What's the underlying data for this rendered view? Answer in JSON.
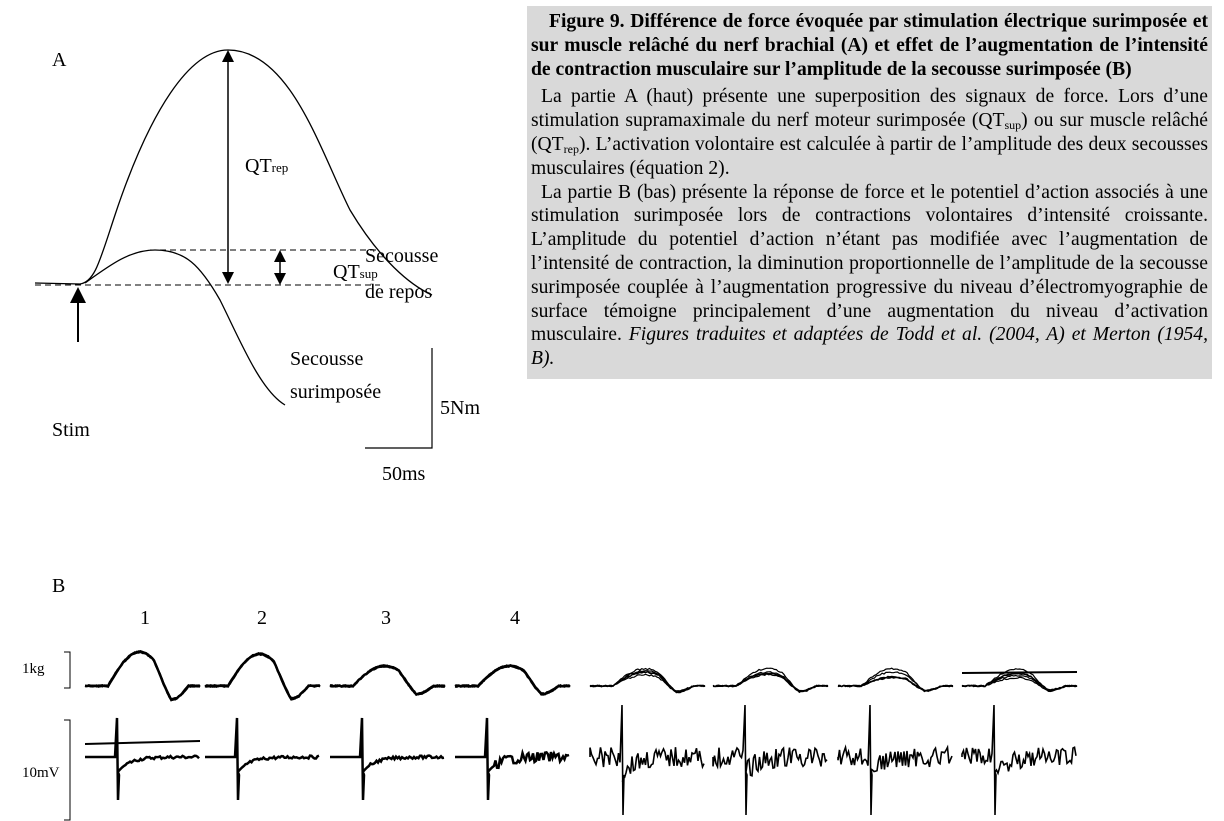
{
  "panel_a": {
    "label": "A",
    "qt_rep": {
      "main": "QT",
      "sub": "rep"
    },
    "qt_sup": {
      "main": "QT",
      "sub": "sup"
    },
    "rest_twitch": [
      "Secousse",
      "de repos"
    ],
    "superimposed_twitch": [
      "Secousse",
      "surimposée"
    ],
    "stim": "Stim",
    "scale_force": "5Nm",
    "scale_time": "50ms"
  },
  "panel_b": {
    "label": "B",
    "columns": [
      "1",
      "2",
      "3",
      "4"
    ],
    "scale_force": "1kg",
    "scale_emg": "10mV"
  },
  "caption": {
    "title": "Figure 9. Différence de force évoquée par stimulation électrique surimposée et sur muscle relâché du nerf brachial (A) et effet de l’augmentation de l’intensité de contraction musculaire sur l’amplitude de la secousse surimposée (B)",
    "paragraphs": [
      [
        "La partie A (haut) présente une superposition des signaux de force. Lors d’une stimulation supramaximale du nerf moteur surimposée (QT",
        {
          "sub": "sup"
        },
        ") ou sur muscle relâché (QT",
        {
          "sub": "rep"
        },
        "). L’activation volontaire est calculée à partir de l’amplitude des deux secousses musculaires (équation 2)."
      ],
      [
        "La partie B (bas) présente la réponse de force et le potentiel d’action associés à une stimulation surimposée lors de contractions volontaires d’intensité croissante. L’amplitude du potentiel d’action n’étant pas modifiée avec l’augmentation de l’intensité de contraction, la diminution proportionnelle de l’amplitude de la secousse surimposée couplée à l’augmentation progressive du niveau d’électromyographie de surface témoigne principalement d’une augmentation du niveau d’activation musculaire. ",
        {
          "i": "Figures traduites et adaptées de Todd et al. (2004, A) et Merton (1954, B)."
        }
      ]
    ]
  }
}
